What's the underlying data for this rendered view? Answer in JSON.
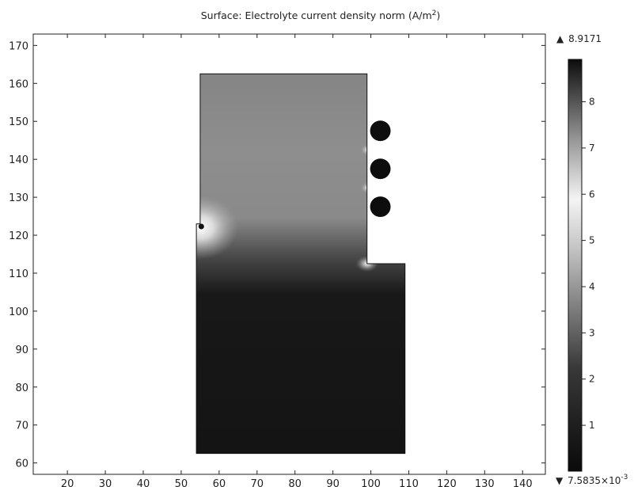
{
  "chart_data": {
    "type": "heatmap",
    "title": "Surface: Electrolyte current density norm (A/m²)",
    "title_main": "Surface: Electrolyte current density norm (A/m",
    "title_sup": "2",
    "title_close": ")",
    "xlim": [
      11,
      146
    ],
    "ylim": [
      57,
      173
    ],
    "x_ticks": [
      20,
      30,
      40,
      50,
      60,
      70,
      80,
      90,
      100,
      110,
      120,
      130,
      140
    ],
    "y_ticks": [
      60,
      70,
      80,
      90,
      100,
      110,
      120,
      130,
      140,
      150,
      160,
      170
    ],
    "grid": false,
    "colormap": "grayscale",
    "colorbar": {
      "max_label": "8.9171",
      "min_label_base": "7.5835×10",
      "min_label_exp": "-3",
      "max_value": 8.9171,
      "min_value": 0.0075835,
      "ticks": [
        1,
        2,
        3,
        4,
        5,
        6,
        7,
        8
      ],
      "max_marker": "▲",
      "min_marker": "▼"
    },
    "domain_outline": [
      [
        55,
        162.5
      ],
      [
        99,
        162.5
      ],
      [
        99,
        112.5
      ],
      [
        109,
        112.5
      ],
      [
        109,
        62.5
      ],
      [
        54,
        62.5
      ],
      [
        54,
        123
      ],
      [
        55,
        123
      ]
    ],
    "electrode_bumps_center_y": [
      147.5,
      137.5,
      127.5
    ],
    "electrode_bump_center_x": [
      102.5
    ],
    "electrode_bump_radius": [
      2.6
    ],
    "small_electrode_center": [
      55.3,
      122.3
    ],
    "hotspots": [
      {
        "x": 55,
        "y": 122,
        "value": 6.0
      },
      {
        "x": 99,
        "y": 112.5,
        "value": 5.2
      },
      {
        "x": 99,
        "y": 142.5,
        "value": 5.5
      },
      {
        "x": 99,
        "y": 132.5,
        "value": 5.5
      }
    ]
  }
}
